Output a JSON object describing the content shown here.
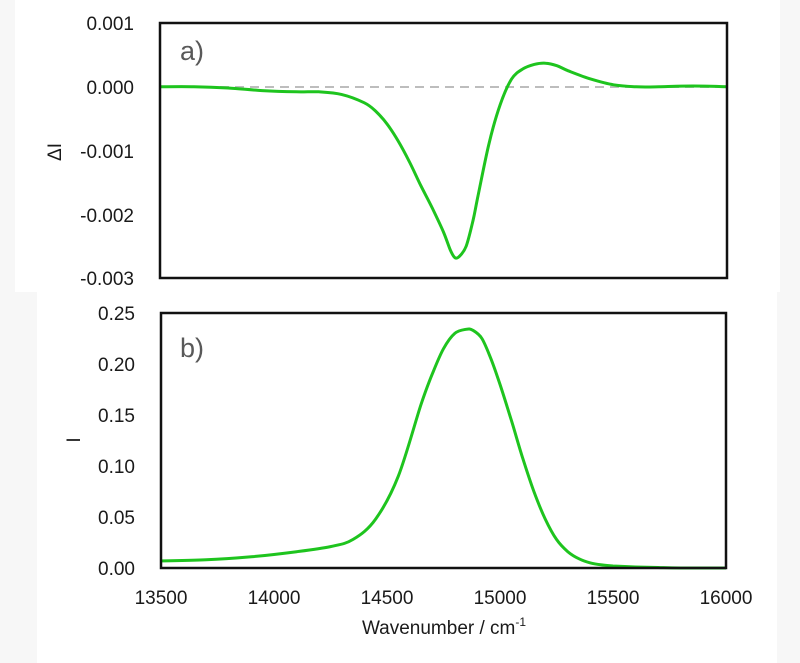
{
  "figure": {
    "background_color": "#f7f7f7",
    "line_color": "#1ec41e",
    "zero_line_color": "#bdbdbd",
    "frame_color": "#111111"
  },
  "chart_data": [
    {
      "type": "line",
      "panel_label": "a)",
      "title": "",
      "xlabel": "",
      "ylabel": "ΔI",
      "xlim": [
        13500,
        16000
      ],
      "ylim": [
        -0.003,
        0.001
      ],
      "yticks": [
        "0.001",
        "0.000",
        "-0.001",
        "-0.002",
        "-0.003"
      ],
      "ytick_values": [
        0.001,
        0.0,
        -0.001,
        -0.002,
        -0.003
      ],
      "grid": false,
      "reference_line": {
        "y": 0.0,
        "style": "dashed",
        "color": "#bdbdbd"
      },
      "series": [
        {
          "name": "ΔI",
          "x": [
            13500,
            13650,
            13800,
            13950,
            14100,
            14200,
            14300,
            14400,
            14450,
            14500,
            14550,
            14600,
            14650,
            14700,
            14750,
            14780,
            14800,
            14820,
            14850,
            14880,
            14900,
            14950,
            15000,
            15050,
            15100,
            15150,
            15200,
            15250,
            15300,
            15400,
            15500,
            15600,
            15700,
            15800,
            15900,
            16000
          ],
          "values": [
            0.0,
            0.0,
            -2e-05,
            -6e-05,
            -8e-05,
            -8e-05,
            -0.00012,
            -0.00025,
            -0.00038,
            -0.00058,
            -0.00085,
            -0.00118,
            -0.00155,
            -0.0019,
            -0.00228,
            -0.00256,
            -0.00268,
            -0.00266,
            -0.0025,
            -0.0021,
            -0.00175,
            -0.0009,
            -0.00028,
            0.00012,
            0.00028,
            0.00035,
            0.00037,
            0.00033,
            0.00025,
            0.00012,
            3e-05,
            0.0,
            0.0,
            1e-05,
            1e-05,
            0.0
          ]
        }
      ]
    },
    {
      "type": "line",
      "panel_label": "b)",
      "title": "",
      "xlabel": "Wavenumber / cm⁻¹",
      "ylabel": "I",
      "xlim": [
        13500,
        16000
      ],
      "ylim": [
        0.0,
        0.25
      ],
      "xticks": [
        "13500",
        "14000",
        "14500",
        "15000",
        "15500",
        "16000"
      ],
      "xtick_values": [
        13500,
        14000,
        14500,
        15000,
        15500,
        16000
      ],
      "yticks": [
        "0.25",
        "0.20",
        "0.15",
        "0.10",
        "0.05",
        "0.00"
      ],
      "ytick_values": [
        0.25,
        0.2,
        0.15,
        0.1,
        0.05,
        0.0
      ],
      "grid": false,
      "series": [
        {
          "name": "I",
          "x": [
            13500,
            13700,
            13900,
            14100,
            14250,
            14350,
            14450,
            14550,
            14650,
            14700,
            14750,
            14800,
            14850,
            14880,
            14920,
            14960,
            15000,
            15050,
            15100,
            15150,
            15200,
            15250,
            15300,
            15350,
            15400,
            15450,
            15500,
            15600,
            15700,
            15800,
            16000
          ],
          "values": [
            0.007,
            0.008,
            0.011,
            0.016,
            0.021,
            0.028,
            0.048,
            0.09,
            0.16,
            0.19,
            0.215,
            0.23,
            0.234,
            0.233,
            0.225,
            0.205,
            0.18,
            0.145,
            0.108,
            0.075,
            0.048,
            0.028,
            0.016,
            0.009,
            0.005,
            0.003,
            0.002,
            0.001,
            0.0005,
            0.0,
            0.0
          ]
        }
      ]
    }
  ],
  "panel_a": {
    "label": "a)",
    "ylabel": "ΔI",
    "yticks": [
      "0.001",
      "0.000",
      "-0.001",
      "-0.002",
      "-0.003"
    ]
  },
  "panel_b": {
    "label": "b)",
    "ylabel": "I",
    "yticks": [
      "0.25",
      "0.20",
      "0.15",
      "0.10",
      "0.05",
      "0.00"
    ],
    "xticks": [
      "13500",
      "14000",
      "14500",
      "15000",
      "15500",
      "16000"
    ],
    "xlabel_main": "Wavenumber / cm",
    "xlabel_sup": "-1"
  }
}
